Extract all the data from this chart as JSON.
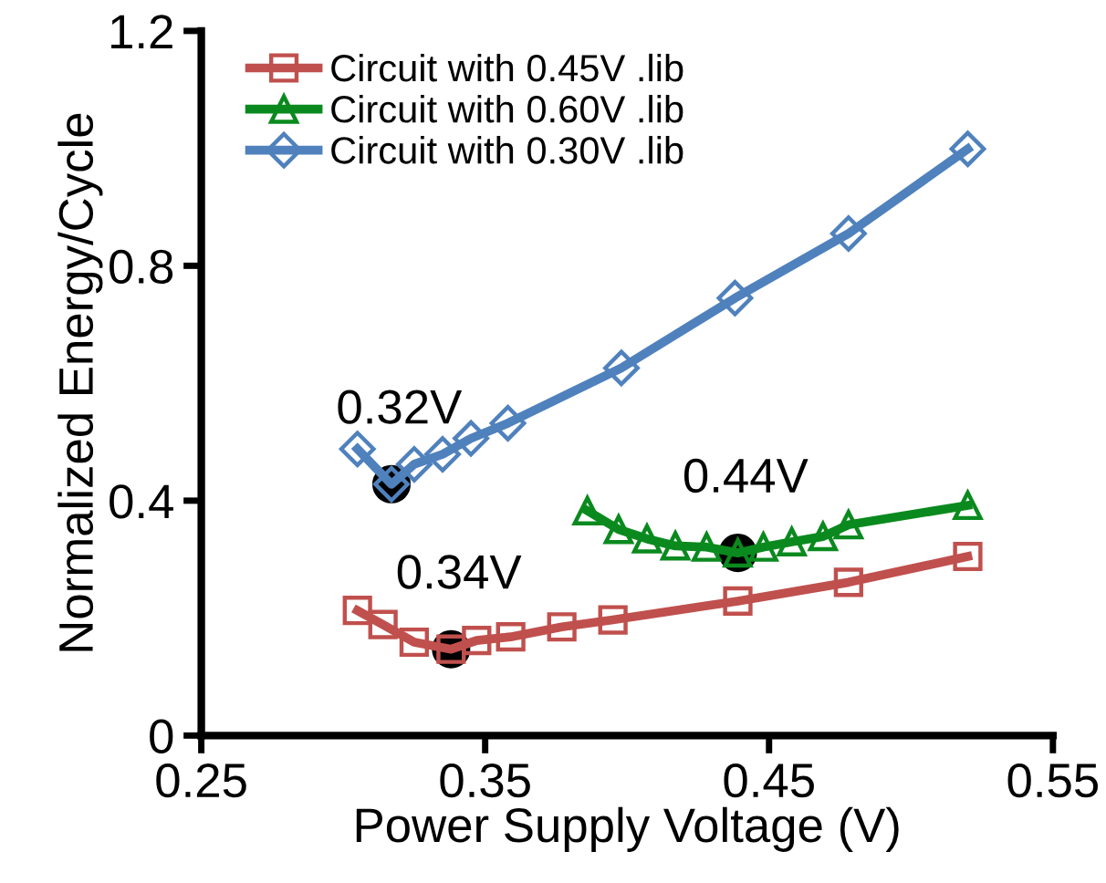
{
  "chart_data": {
    "type": "line",
    "xlabel": "Power Supply Voltage (V)",
    "ylabel": "Normalized Energy/Cycle",
    "xlim": [
      0.25,
      0.55
    ],
    "xticks": [
      0.25,
      0.35,
      0.45,
      0.55
    ],
    "ylim": [
      0,
      1.2
    ],
    "yticks": [
      0,
      0.4,
      0.8,
      1.2
    ],
    "grid": false,
    "legend": "top left",
    "line_style": "solid",
    "series": [
      {
        "name": "Circuit with 0.45V .lib",
        "color": "#c0504d",
        "marker": "square",
        "x": [
          0.305,
          0.314,
          0.325,
          0.338,
          0.347,
          0.359,
          0.377,
          0.395,
          0.439,
          0.478,
          0.52
        ],
        "values": [
          0.213,
          0.189,
          0.159,
          0.147,
          0.162,
          0.168,
          0.185,
          0.197,
          0.229,
          0.261,
          0.305
        ]
      },
      {
        "name": "Circuit with 0.60V .lib",
        "color": "#0a8a1e",
        "marker": "triangle",
        "x": [
          0.386,
          0.397,
          0.407,
          0.417,
          0.428,
          0.439,
          0.448,
          0.458,
          0.469,
          0.478,
          0.52
        ],
        "values": [
          0.383,
          0.351,
          0.335,
          0.323,
          0.321,
          0.311,
          0.321,
          0.33,
          0.339,
          0.359,
          0.392
        ]
      },
      {
        "name": "Circuit with 0.30V .lib",
        "color": "#4f81bd",
        "marker": "diamond",
        "x": [
          0.305,
          0.317,
          0.325,
          0.335,
          0.345,
          0.358,
          0.398,
          0.438,
          0.478,
          0.52
        ],
        "values": [
          0.488,
          0.428,
          0.462,
          0.479,
          0.506,
          0.532,
          0.626,
          0.745,
          0.855,
          0.999
        ]
      },
      {
        "type": "scatter",
        "color": "#000000",
        "marker": "circle",
        "x": [
          0.317,
          0.338,
          0.439
        ],
        "values": [
          0.428,
          0.147,
          0.311
        ]
      }
    ],
    "annotations": [
      {
        "text": "0.32V",
        "x": 0.317,
        "y": 0.428
      },
      {
        "text": "0.34V",
        "x": 0.338,
        "y": 0.147
      },
      {
        "text": "0.44V",
        "x": 0.439,
        "y": 0.311
      }
    ]
  }
}
